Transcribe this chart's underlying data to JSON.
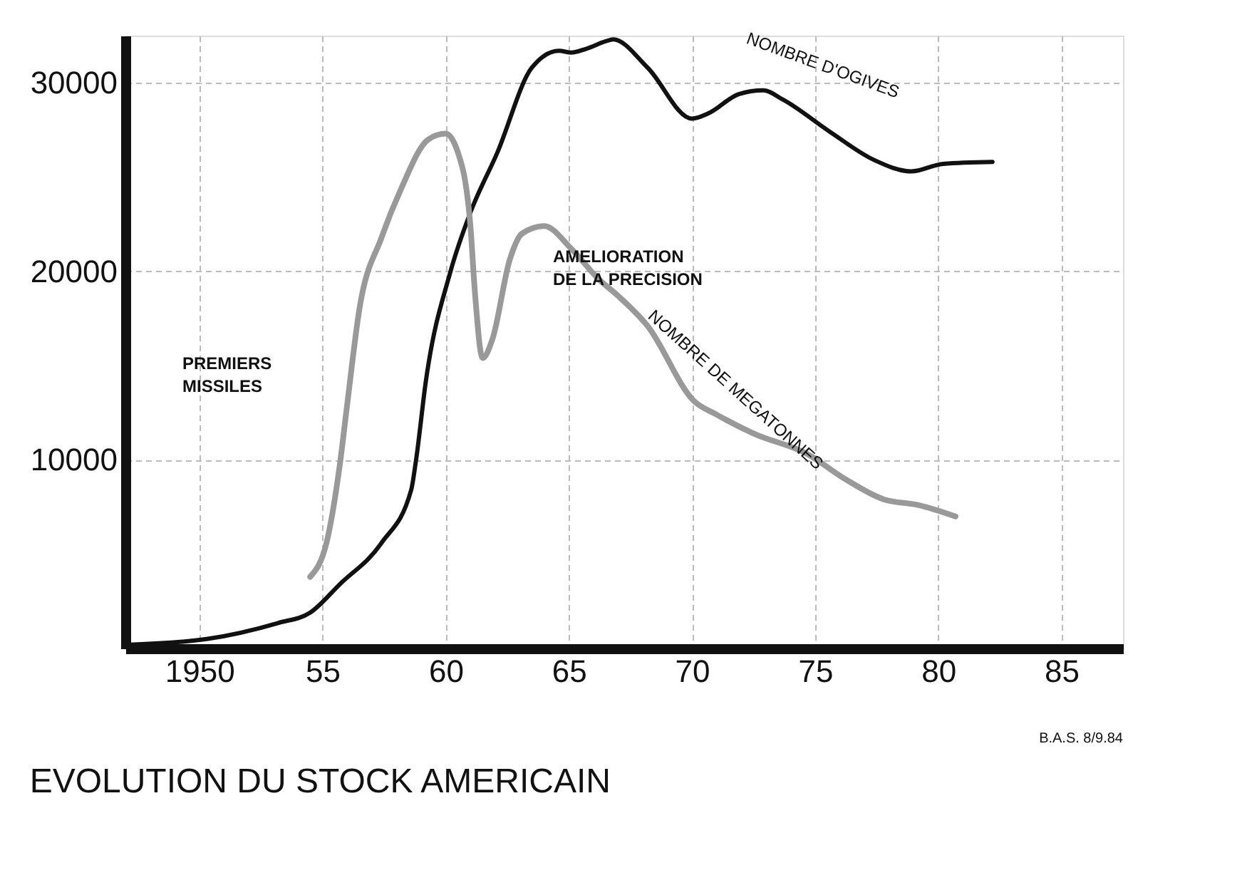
{
  "chart_data": {
    "type": "line",
    "title": "EVOLUTION DU STOCK AMERICAIN",
    "xlim": [
      1947,
      1987.5
    ],
    "xticks": [
      {
        "value": 1950,
        "label": "1950"
      },
      {
        "value": 1955,
        "label": "55"
      },
      {
        "value": 1960,
        "label": "60"
      },
      {
        "value": 1965,
        "label": "65"
      },
      {
        "value": 1970,
        "label": "70"
      },
      {
        "value": 1975,
        "label": "75"
      },
      {
        "value": 1980,
        "label": "80"
      },
      {
        "value": 1985,
        "label": "85"
      }
    ],
    "ylim": [
      0,
      32500
    ],
    "yticks": [
      {
        "value": 0,
        "label": null
      },
      10000,
      20000,
      30000
    ],
    "grid": true,
    "legend": false,
    "line_style": "solid",
    "marker": "none",
    "series": [
      {
        "name": "NOMBRE D'OGIVES",
        "color": "#111111",
        "x": [
          1947.2,
          1950.3,
          1953.2,
          1954.5,
          1955.7,
          1957.4,
          1958.6,
          1958.8,
          1959.2,
          1960.2,
          1961,
          1962.1,
          1963.5,
          1964.6,
          1965.1,
          1965.7,
          1966.5,
          1966.8,
          1968.2,
          1970,
          1970.7,
          1971.9,
          1972.9,
          1973.7,
          1975.6,
          1977.4,
          1978.9,
          1980.2,
          1982.2
        ],
        "values": [
          200,
          500,
          1350,
          1900,
          3400,
          5600,
          8400,
          10000,
          14200,
          20000,
          23100,
          26300,
          30800,
          31700,
          31600,
          31800,
          32200,
          32300,
          30800,
          28100,
          28400,
          29400,
          29600,
          29100,
          27400,
          25900,
          25300,
          25700,
          25800
        ]
      },
      {
        "name": "NOMBRE DE MEGATONNES",
        "color": "#999999",
        "x": [
          1954.5,
          1955.2,
          1955.7,
          1956,
          1956.5,
          1957.4,
          1958.2,
          1959.3,
          1960,
          1960.5,
          1961,
          1961.2,
          1961.5,
          1961.9,
          1962.6,
          1963.1,
          1964,
          1965.1,
          1966.2,
          1967,
          1968.2,
          1970.1,
          1971,
          1972.5,
          1974.7,
          1976.2,
          1977.8,
          1979.2,
          1980.7
        ],
        "values": [
          3800,
          5800,
          9700,
          12900,
          18000,
          21800,
          24400,
          27000,
          27300,
          26300,
          22500,
          18700,
          15400,
          16400,
          20600,
          22000,
          22400,
          21200,
          19600,
          18700,
          17100,
          13100,
          12400,
          11400,
          10300,
          9000,
          7900,
          7600,
          7000
        ]
      }
    ],
    "annotations": [
      "PREMIERS\nMISSILES",
      "AMELIORATION\nDE LA PRECISION",
      "B.A.S. 8/9.84"
    ]
  }
}
